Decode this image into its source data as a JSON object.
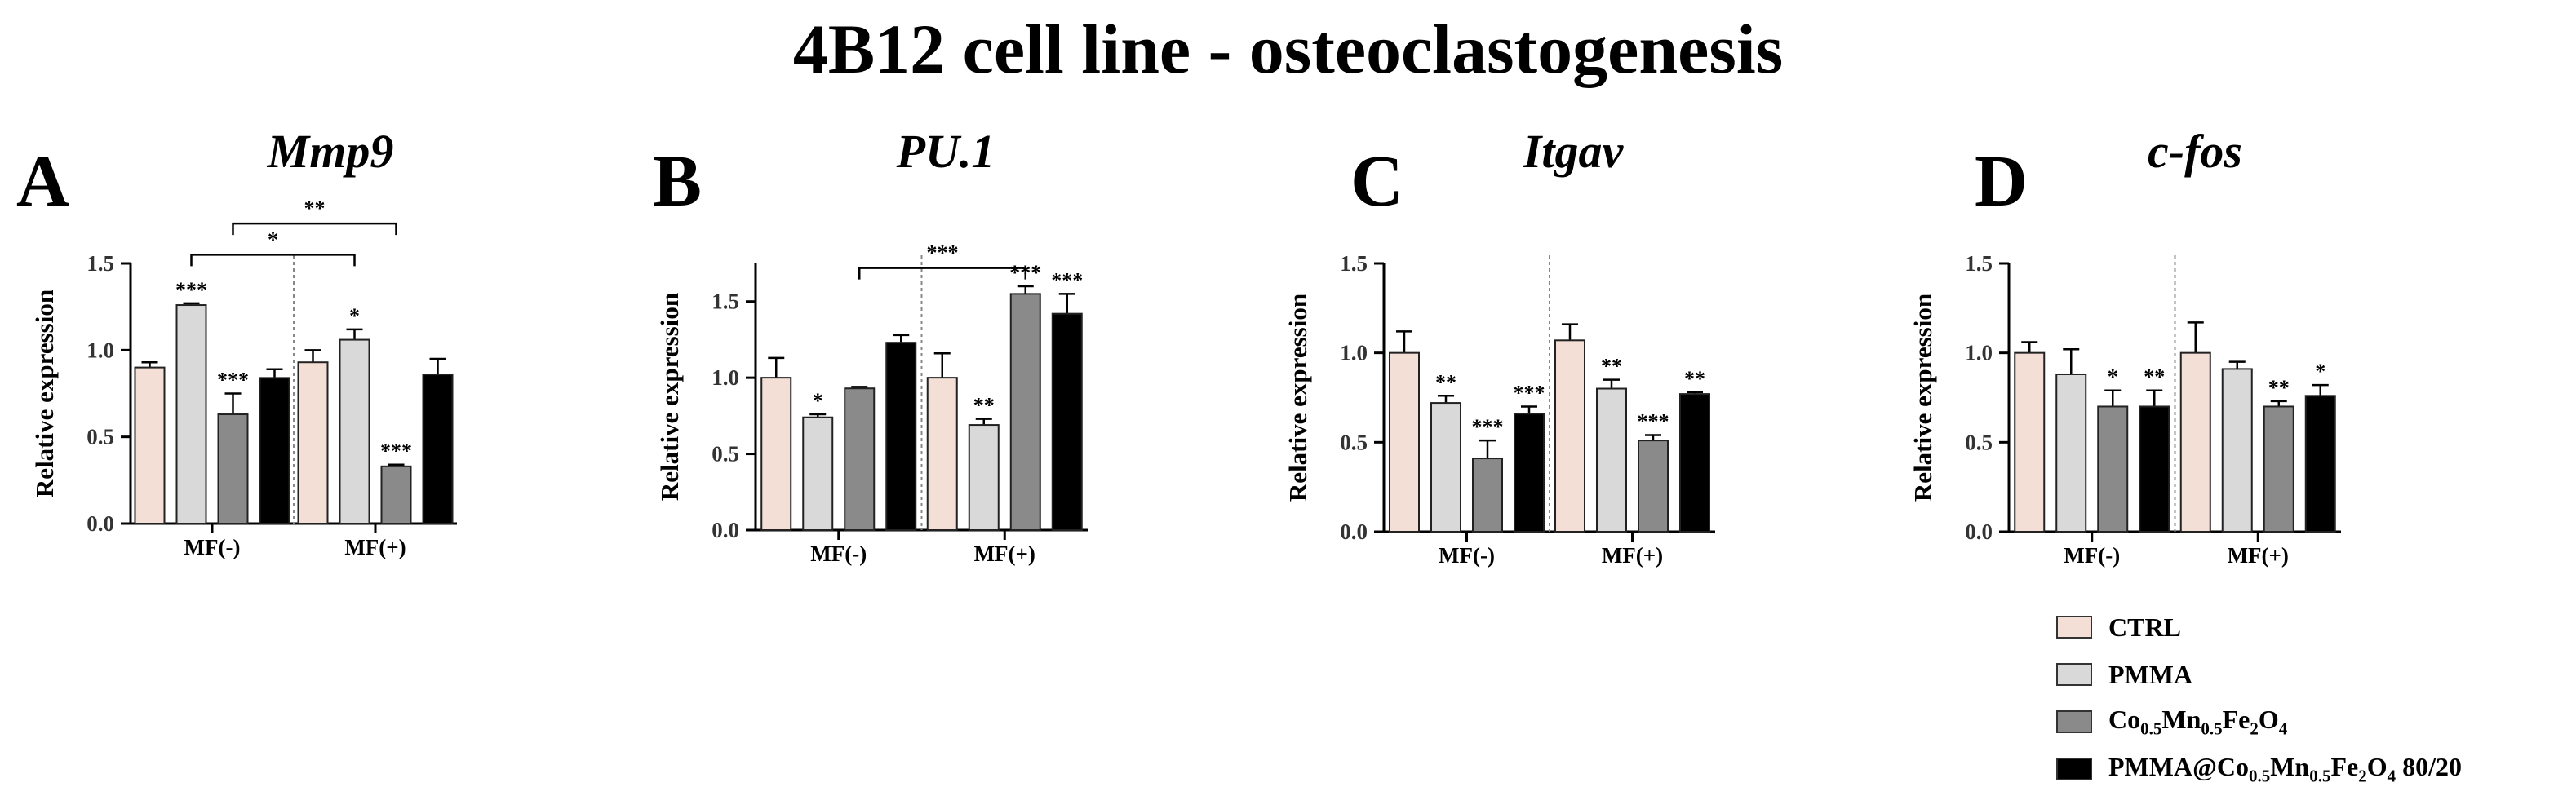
{
  "title": "4B12 cell line - osteoclastogenesis",
  "colors": {
    "CTRL": "#f3dfd6",
    "PMMA": "#d9d9d9",
    "Co": "#8a8a8a",
    "PMMAat": "#000000"
  },
  "legend": [
    {
      "key": "CTRL",
      "base": "CTRL",
      "parts": []
    },
    {
      "key": "PMMA",
      "base": "PMMA",
      "parts": []
    },
    {
      "key": "Co",
      "base": "",
      "parts": [
        [
          "Co",
          ""
        ],
        [
          "",
          "0.5"
        ],
        [
          "Mn",
          ""
        ],
        [
          "",
          "0.5"
        ],
        [
          "Fe",
          ""
        ],
        [
          "",
          "2"
        ],
        [
          "O",
          ""
        ],
        [
          "",
          "4"
        ]
      ]
    },
    {
      "key": "PMMAat",
      "base": "",
      "parts": [
        [
          "PMMA@Co",
          ""
        ],
        [
          "",
          "0.5"
        ],
        [
          "Mn",
          ""
        ],
        [
          "",
          "0.5"
        ],
        [
          "Fe",
          ""
        ],
        [
          "",
          "2"
        ],
        [
          "O",
          ""
        ],
        [
          "",
          "4"
        ],
        [
          " 80/20",
          ""
        ]
      ]
    }
  ],
  "chart_data": [
    {
      "panel": "A",
      "title": "Mmp9",
      "type": "bar",
      "ylabel": "Relative expression",
      "ylim": [
        0,
        1.5
      ],
      "yticks": [
        "0.0",
        "0.5",
        "1.0",
        "1.5"
      ],
      "categories": [
        "MF(-)",
        "MF(+)"
      ],
      "series": [
        {
          "name": "CTRL",
          "values": [
            0.9,
            0.93
          ],
          "errors": [
            0.03,
            0.07
          ],
          "sig": [
            "",
            ""
          ]
        },
        {
          "name": "PMMA",
          "values": [
            1.26,
            1.06
          ],
          "errors": [
            0.01,
            0.06
          ],
          "sig": [
            "***",
            "*"
          ]
        },
        {
          "name": "Co",
          "values": [
            0.63,
            0.33
          ],
          "errors": [
            0.12,
            0.01
          ],
          "sig": [
            "***",
            "***"
          ]
        },
        {
          "name": "PMMAat",
          "values": [
            0.84,
            0.86
          ],
          "errors": [
            0.05,
            0.09
          ],
          "sig": [
            "",
            ""
          ]
        }
      ],
      "brackets": [
        {
          "from": [
            0,
            2
          ],
          "to": [
            1,
            2
          ],
          "label": "**",
          "level": 1.73
        },
        {
          "from": [
            0,
            1
          ],
          "to": [
            1,
            1
          ],
          "label": "*",
          "level": 1.55
        }
      ]
    },
    {
      "panel": "B",
      "title": "PU.1",
      "type": "bar",
      "ylabel": "Relative expression",
      "ylim": [
        0,
        1.75
      ],
      "yticks": [
        "0.0",
        "0.5",
        "1.0",
        "1.5"
      ],
      "categories": [
        "MF(-)",
        "MF(+)"
      ],
      "series": [
        {
          "name": "CTRL",
          "values": [
            1.0,
            1.0
          ],
          "errors": [
            0.13,
            0.16
          ],
          "sig": [
            "",
            ""
          ]
        },
        {
          "name": "PMMA",
          "values": [
            0.74,
            0.69
          ],
          "errors": [
            0.02,
            0.04
          ],
          "sig": [
            "*",
            "**"
          ]
        },
        {
          "name": "Co",
          "values": [
            0.93,
            1.55
          ],
          "errors": [
            0.01,
            0.05
          ],
          "sig": [
            "",
            "***"
          ]
        },
        {
          "name": "PMMAat",
          "values": [
            1.23,
            1.42
          ],
          "errors": [
            0.05,
            0.13
          ],
          "sig": [
            "",
            "***"
          ]
        }
      ],
      "brackets": [
        {
          "from": [
            0,
            2
          ],
          "to": [
            1,
            2
          ],
          "label": "***",
          "level": 1.72
        }
      ]
    },
    {
      "panel": "C",
      "title": "Itgav",
      "type": "bar",
      "ylabel": "Relative expression",
      "ylim": [
        0,
        1.5
      ],
      "yticks": [
        "0.0",
        "0.5",
        "1.0",
        "1.5"
      ],
      "categories": [
        "MF(-)",
        "MF(+)"
      ],
      "series": [
        {
          "name": "CTRL",
          "values": [
            1.0,
            1.07
          ],
          "errors": [
            0.12,
            0.09
          ],
          "sig": [
            "",
            ""
          ]
        },
        {
          "name": "PMMA",
          "values": [
            0.72,
            0.8
          ],
          "errors": [
            0.04,
            0.05
          ],
          "sig": [
            "**",
            "**"
          ]
        },
        {
          "name": "Co",
          "values": [
            0.41,
            0.51
          ],
          "errors": [
            0.1,
            0.03
          ],
          "sig": [
            "***",
            "***"
          ]
        },
        {
          "name": "PMMAat",
          "values": [
            0.66,
            0.77
          ],
          "errors": [
            0.04,
            0.01
          ],
          "sig": [
            "***",
            "**"
          ]
        }
      ],
      "brackets": []
    },
    {
      "panel": "D",
      "title": "c-fos",
      "type": "bar",
      "ylabel": "Relative expression",
      "ylim": [
        0,
        1.5
      ],
      "yticks": [
        "0.0",
        "0.5",
        "1.0",
        "1.5"
      ],
      "categories": [
        "MF(-)",
        "MF(+)"
      ],
      "series": [
        {
          "name": "CTRL",
          "values": [
            1.0,
            1.0
          ],
          "errors": [
            0.06,
            0.17
          ],
          "sig": [
            "",
            ""
          ]
        },
        {
          "name": "PMMA",
          "values": [
            0.88,
            0.91
          ],
          "errors": [
            0.14,
            0.04
          ],
          "sig": [
            "",
            ""
          ]
        },
        {
          "name": "Co",
          "values": [
            0.7,
            0.7
          ],
          "errors": [
            0.09,
            0.03
          ],
          "sig": [
            "*",
            "**"
          ]
        },
        {
          "name": "PMMAat",
          "values": [
            0.7,
            0.76
          ],
          "errors": [
            0.09,
            0.06
          ],
          "sig": [
            "**",
            "*"
          ]
        }
      ],
      "brackets": []
    }
  ]
}
